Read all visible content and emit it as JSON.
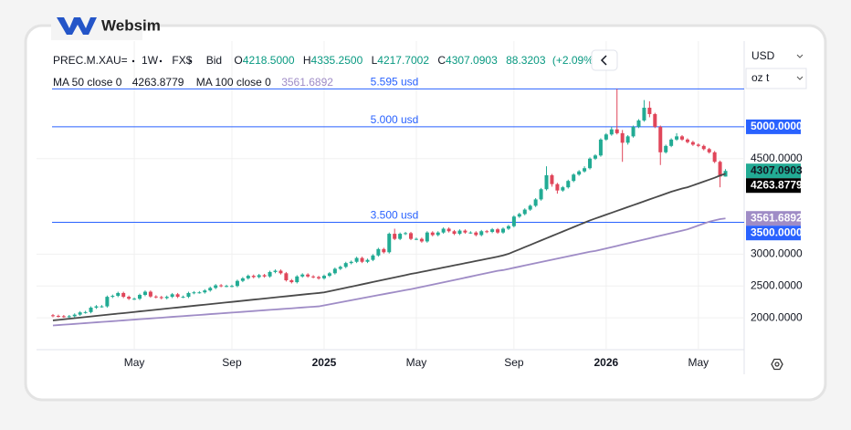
{
  "brand": "Websim",
  "controls": {
    "currency": "USD",
    "unit": "oz t"
  },
  "legend": {
    "symbol": "PREC.M.XAU=",
    "interval": "1W",
    "source": "FX$",
    "side": "Bid",
    "ohlc": [
      {
        "key": "O",
        "label": "4218.5000"
      },
      {
        "key": "H",
        "label": "4335.2500"
      },
      {
        "key": "L",
        "label": "4217.7002"
      },
      {
        "key": "C",
        "label": "4307.0903"
      }
    ],
    "change": 88.3203,
    "change_pct": "(+2.09%)"
  },
  "chart_data": {
    "type": "candlestick",
    "categories": [
      null,
      null,
      null,
      null,
      null,
      null,
      null,
      null,
      null,
      null,
      null,
      null,
      null,
      null,
      null,
      "May",
      null,
      null,
      null,
      null,
      null,
      null,
      null,
      null,
      null,
      null,
      null,
      null,
      null,
      null,
      null,
      null,
      null,
      "Sep",
      null,
      null,
      null,
      null,
      null,
      null,
      null,
      null,
      null,
      null,
      null,
      null,
      null,
      null,
      null,
      null,
      "2025",
      null,
      null,
      null,
      null,
      null,
      null,
      null,
      null,
      null,
      null,
      null,
      null,
      null,
      null,
      null,
      null,
      "May",
      null,
      null,
      null,
      null,
      null,
      null,
      null,
      null,
      null,
      null,
      null,
      null,
      null,
      null,
      null,
      null,
      null,
      "Sep",
      null,
      null,
      null,
      null,
      null,
      null,
      null,
      null,
      null,
      null,
      null,
      null,
      null,
      null,
      null,
      null,
      "2026",
      null,
      null,
      null,
      null,
      null,
      null,
      null,
      null,
      null,
      null,
      null,
      null,
      null,
      null,
      null,
      null,
      "May",
      null,
      null,
      null,
      null,
      null
    ],
    "open": [
      2040,
      2030,
      2025,
      2020,
      2025,
      2050,
      2085,
      2090,
      2160,
      2180,
      2180,
      2330,
      2345,
      2390,
      2330,
      2300,
      2300,
      2360,
      2410,
      2335,
      2325,
      2310,
      2330,
      2370,
      2330,
      2330,
      2390,
      2400,
      2400,
      2430,
      2470,
      2510,
      2500,
      2500,
      2500,
      2580,
      2620,
      2660,
      2640,
      2670,
      2650,
      2720,
      2740,
      2700,
      2590,
      2560,
      2650,
      2680,
      2650,
      2640,
      2620,
      2660,
      2700,
      2770,
      2800,
      2860,
      2880,
      2940,
      2880,
      2910,
      2980,
      3080,
      3030,
      3320,
      3240,
      3320,
      3330,
      3240,
      3240,
      3200,
      3340,
      3300,
      3340,
      3400,
      3360,
      3320,
      3370,
      3340,
      3340,
      3300,
      3360,
      3350,
      3390,
      3340,
      3400,
      3440,
      3590,
      3630,
      3700,
      3760,
      3860,
      4020,
      4240,
      4100,
      4000,
      4050,
      4150,
      4250,
      4300,
      4350,
      4500,
      4550,
      4800,
      4880,
      4960,
      4900,
      4750,
      4850,
      5000,
      5100,
      5300,
      5200,
      5000,
      4600,
      4700,
      4800,
      4850,
      4800,
      4760,
      4720,
      4700,
      4650,
      4600,
      4450,
      4218.5
    ],
    "high": [
      2060,
      2050,
      2045,
      2045,
      2070,
      2105,
      2110,
      2180,
      2200,
      2200,
      2350,
      2365,
      2410,
      2410,
      2350,
      2320,
      2380,
      2430,
      2430,
      2355,
      2345,
      2350,
      2390,
      2390,
      2350,
      2410,
      2420,
      2420,
      2450,
      2490,
      2530,
      2530,
      2520,
      2520,
      2600,
      2640,
      2680,
      2680,
      2690,
      2690,
      2740,
      2760,
      2760,
      2720,
      2610,
      2670,
      2700,
      2700,
      2670,
      2660,
      2680,
      2720,
      2790,
      2820,
      2880,
      2900,
      2960,
      2960,
      2930,
      3000,
      3100,
      3100,
      3340,
      3400,
      3340,
      3350,
      3350,
      3260,
      3260,
      3360,
      3360,
      3360,
      3420,
      3420,
      3380,
      3390,
      3390,
      3360,
      3360,
      3380,
      3380,
      3410,
      3410,
      3420,
      3460,
      3610,
      3650,
      3720,
      3780,
      3880,
      4040,
      4380,
      4260,
      4120,
      4070,
      4170,
      4270,
      4320,
      4380,
      4520,
      4570,
      4820,
      4900,
      5000,
      5595,
      4950,
      4870,
      5020,
      5120,
      5420,
      5400,
      5220,
      5020,
      4720,
      4820,
      4900,
      4870,
      4820,
      4780,
      4740,
      4720,
      4670,
      4620,
      4470,
      4335.25
    ],
    "low": [
      2010,
      2005,
      2000,
      2000,
      2005,
      2030,
      2065,
      2070,
      2140,
      2160,
      2160,
      2310,
      2325,
      2310,
      2280,
      2280,
      2280,
      2340,
      2315,
      2305,
      2290,
      2290,
      2310,
      2310,
      2310,
      2310,
      2370,
      2380,
      2380,
      2410,
      2450,
      2480,
      2480,
      2480,
      2480,
      2560,
      2600,
      2620,
      2620,
      2630,
      2630,
      2700,
      2680,
      2570,
      2540,
      2540,
      2630,
      2630,
      2620,
      2600,
      2600,
      2640,
      2680,
      2750,
      2780,
      2840,
      2860,
      2860,
      2860,
      2890,
      2960,
      3010,
      3010,
      3220,
      3220,
      3300,
      3220,
      3220,
      3180,
      3180,
      3280,
      3280,
      3320,
      3340,
      3300,
      3300,
      3320,
      3320,
      3280,
      3280,
      3330,
      3330,
      3320,
      3320,
      3380,
      3420,
      3570,
      3610,
      3680,
      3740,
      3840,
      4000,
      4060,
      3950,
      3980,
      4030,
      4130,
      4230,
      4280,
      4330,
      4480,
      4530,
      4780,
      4860,
      4880,
      4450,
      4720,
      4830,
      4980,
      5080,
      5150,
      4980,
      4400,
      4580,
      4680,
      4780,
      4780,
      4740,
      4700,
      4680,
      4630,
      4580,
      4430,
      4050,
      4217.7002
    ],
    "close": [
      2030,
      2025,
      2020,
      2025,
      2050,
      2085,
      2090,
      2160,
      2180,
      2180,
      2330,
      2345,
      2390,
      2330,
      2300,
      2300,
      2360,
      2410,
      2335,
      2325,
      2310,
      2330,
      2370,
      2330,
      2330,
      2390,
      2400,
      2400,
      2430,
      2470,
      2510,
      2500,
      2500,
      2500,
      2580,
      2620,
      2660,
      2640,
      2670,
      2650,
      2720,
      2740,
      2700,
      2590,
      2560,
      2650,
      2680,
      2650,
      2640,
      2620,
      2660,
      2700,
      2770,
      2800,
      2860,
      2880,
      2940,
      2880,
      2910,
      2980,
      3080,
      3030,
      3320,
      3240,
      3320,
      3330,
      3240,
      3240,
      3200,
      3340,
      3300,
      3340,
      3400,
      3360,
      3320,
      3370,
      3340,
      3340,
      3300,
      3360,
      3350,
      3390,
      3340,
      3400,
      3440,
      3590,
      3630,
      3700,
      3760,
      3860,
      4020,
      4240,
      4100,
      4000,
      4050,
      4150,
      4250,
      4300,
      4350,
      4500,
      4550,
      4800,
      4880,
      4960,
      4900,
      4750,
      4850,
      5000,
      5100,
      5300,
      5200,
      5000,
      4600,
      4700,
      4800,
      4850,
      4800,
      4760,
      4720,
      4700,
      4650,
      4600,
      4450,
      4218.77,
      4307.0903
    ],
    "up_color": "#22ab94",
    "down_color": "#e0465a",
    "series": [
      {
        "name": "MA 50 close 0",
        "color": "#4a4a4a",
        "values": [
          1960,
          1968,
          1977,
          1986,
          1995,
          2004,
          2013,
          2021,
          2030,
          2039,
          2048,
          2057,
          2066,
          2074,
          2083,
          2092,
          2101,
          2110,
          2118,
          2127,
          2136,
          2145,
          2154,
          2162,
          2171,
          2180,
          2189,
          2198,
          2206,
          2215,
          2224,
          2233,
          2242,
          2250,
          2259,
          2268,
          2277,
          2286,
          2294,
          2303,
          2312,
          2321,
          2330,
          2338,
          2347,
          2356,
          2365,
          2374,
          2382,
          2390,
          2400,
          2418,
          2436,
          2454,
          2472,
          2490,
          2508,
          2526,
          2544,
          2562,
          2580,
          2598,
          2616,
          2634,
          2652,
          2670,
          2690,
          2705,
          2722,
          2739,
          2756,
          2773,
          2790,
          2807,
          2824,
          2841,
          2858,
          2875,
          2892,
          2909,
          2926,
          2943,
          2960,
          2980,
          3005,
          3040,
          3075,
          3110,
          3145,
          3180,
          3215,
          3250,
          3285,
          3320,
          3355,
          3390,
          3425,
          3460,
          3495,
          3530,
          3560,
          3590,
          3620,
          3650,
          3680,
          3710,
          3740,
          3770,
          3800,
          3830,
          3860,
          3890,
          3920,
          3950,
          3980,
          4005,
          4030,
          4050,
          4080,
          4110,
          4140,
          4170,
          4200,
          4235,
          4263.8779
        ]
      },
      {
        "name": "MA 100 close 0",
        "color": "#9f8cc6",
        "values": [
          1880,
          1886,
          1892,
          1898,
          1904,
          1911,
          1917,
          1923,
          1929,
          1935,
          1941,
          1947,
          1953,
          1960,
          1966,
          1972,
          1978,
          1984,
          1990,
          1996,
          2002,
          2009,
          2015,
          2021,
          2027,
          2033,
          2039,
          2045,
          2051,
          2058,
          2064,
          2070,
          2076,
          2082,
          2088,
          2094,
          2100,
          2107,
          2113,
          2119,
          2125,
          2131,
          2137,
          2143,
          2149,
          2156,
          2162,
          2168,
          2174,
          2180,
          2196,
          2212,
          2228,
          2244,
          2260,
          2276,
          2292,
          2308,
          2324,
          2340,
          2356,
          2372,
          2388,
          2404,
          2420,
          2436,
          2450,
          2468,
          2486,
          2504,
          2522,
          2540,
          2558,
          2576,
          2594,
          2612,
          2630,
          2648,
          2666,
          2684,
          2702,
          2720,
          2738,
          2750,
          2768,
          2786,
          2804,
          2822,
          2840,
          2858,
          2876,
          2894,
          2912,
          2930,
          2948,
          2966,
          2984,
          3002,
          3020,
          3038,
          3050,
          3070,
          3090,
          3110,
          3130,
          3150,
          3170,
          3190,
          3210,
          3230,
          3250,
          3270,
          3290,
          3310,
          3330,
          3350,
          3370,
          3390,
          3420,
          3450,
          3480,
          3510,
          3530,
          3550,
          3561.6892
        ]
      }
    ],
    "price_lines": [
      {
        "value": 5595,
        "label": "5.595 usd"
      },
      {
        "value": 5000,
        "label": "5.000 usd",
        "axis_label": "5000.0000"
      },
      {
        "value": 3500,
        "label": "3.500 usd",
        "axis_label": "3500.0000"
      }
    ],
    "price_line_color": "#2962ff",
    "ylim": [
      1500,
      6160
    ],
    "yticks": [
      {
        "value": 2000,
        "label": "2000.0000"
      },
      {
        "value": 2500,
        "label": "2500.0000"
      },
      {
        "value": 3000,
        "label": "3000.0000"
      },
      {
        "value": 4500,
        "label": "4500.0000"
      }
    ],
    "grid": true
  }
}
